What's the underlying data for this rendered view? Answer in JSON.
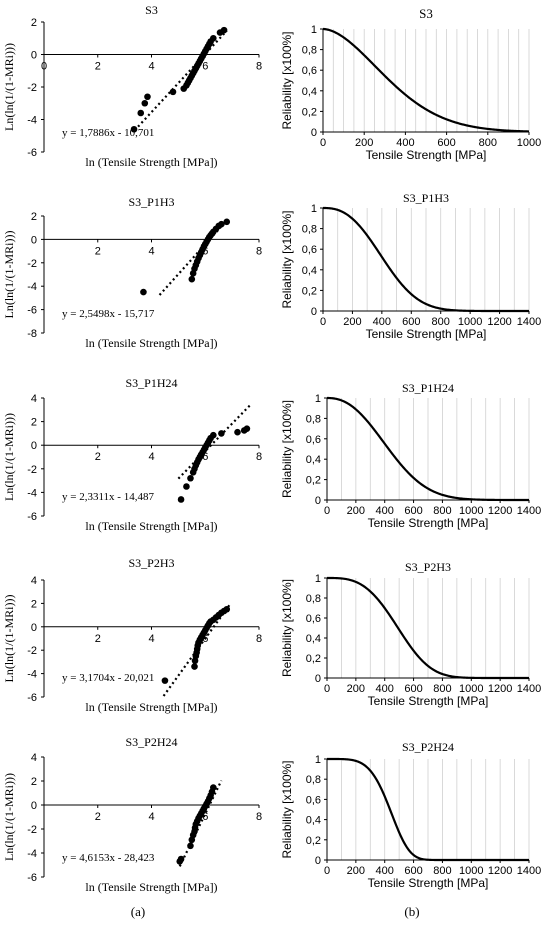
{
  "panel_labels": {
    "a": "(a)",
    "b": "(b)"
  },
  "chart_data": [
    {
      "type": "scatter",
      "title": "S3",
      "xlabel": "ln (Tensile Strength [MPa])",
      "ylabel": "Ln(ln(1/(1-MRi)))",
      "xlim": [
        0,
        8
      ],
      "ylim": [
        -6,
        2
      ],
      "xticks": [
        0,
        2,
        4,
        6,
        8
      ],
      "yticks": [
        -6,
        -4,
        -2,
        0,
        2
      ],
      "equation": "y = 1,7886x - 10,701",
      "trend": {
        "slope": 1.7886,
        "intercept": -10.701,
        "x": [
          3.5,
          6.8
        ]
      },
      "points": {
        "x": [
          3.35,
          3.6,
          3.75,
          3.85,
          4.8,
          5.2,
          5.3,
          5.35,
          5.4,
          5.45,
          5.5,
          5.55,
          5.6,
          5.65,
          5.7,
          5.75,
          5.8,
          5.85,
          5.9,
          5.95,
          6.0,
          6.05,
          6.1,
          6.15,
          6.2,
          6.3,
          6.55,
          6.7
        ],
        "y": [
          -4.6,
          -3.6,
          -3.0,
          -2.6,
          -2.3,
          -2.1,
          -1.9,
          -1.75,
          -1.6,
          -1.45,
          -1.3,
          -1.15,
          -1.0,
          -0.85,
          -0.7,
          -0.55,
          -0.4,
          -0.25,
          -0.1,
          0.05,
          0.2,
          0.35,
          0.5,
          0.65,
          0.8,
          1.0,
          1.35,
          1.5
        ]
      }
    },
    {
      "type": "line",
      "title": "S3",
      "xlabel": "Tensile Strength [MPa]",
      "ylabel": "Reliability [x100%]",
      "xlim": [
        0,
        1000
      ],
      "ylim": [
        0,
        1
      ],
      "xticks": [
        0,
        200,
        400,
        600,
        800,
        1000
      ],
      "yticks": [
        0,
        0.2,
        0.4,
        0.6,
        0.8,
        1
      ],
      "ytick_labels": [
        "0",
        "0,2",
        "0,4",
        "0,6",
        "0,8",
        "1"
      ],
      "grid": true,
      "series": [
        {
          "weibull": {
            "m": 1.7886,
            "b": -10.701
          }
        }
      ]
    },
    {
      "type": "scatter",
      "title": "S3_P1H3",
      "xlabel": "ln (Tensile Strength [MPa])",
      "ylabel": "Ln(ln(1/(1-MRi)))",
      "xlim": [
        0,
        8
      ],
      "ylim": [
        -8,
        2
      ],
      "xticks": [
        2,
        4,
        6,
        8
      ],
      "yticks": [
        -8,
        -6,
        -4,
        -2,
        0,
        2
      ],
      "equation": "y = 2,5498x - 15,717",
      "trend": {
        "slope": 2.5498,
        "intercept": -15.717,
        "x": [
          4.3,
          6.9
        ]
      },
      "points": {
        "x": [
          3.7,
          5.5,
          5.55,
          5.6,
          5.65,
          5.7,
          5.75,
          5.8,
          5.85,
          5.9,
          5.95,
          6.0,
          6.05,
          6.1,
          6.15,
          6.2,
          6.25,
          6.3,
          6.4,
          6.5,
          6.6,
          6.8
        ],
        "y": [
          -4.5,
          -3.4,
          -2.9,
          -2.5,
          -2.2,
          -1.9,
          -1.6,
          -1.35,
          -1.1,
          -0.85,
          -0.6,
          -0.4,
          -0.2,
          0.0,
          0.2,
          0.35,
          0.5,
          0.65,
          0.9,
          1.15,
          1.3,
          1.5
        ]
      }
    },
    {
      "type": "line",
      "title": "S3_P1H3",
      "xlabel": "Tensile Strength [MPa]",
      "ylabel": "Reliability [x100%]",
      "xlim": [
        0,
        1400
      ],
      "ylim": [
        0,
        1
      ],
      "xticks": [
        0,
        200,
        400,
        600,
        800,
        1000,
        1200,
        1400
      ],
      "yticks": [
        0,
        0.2,
        0.4,
        0.6,
        0.8,
        1
      ],
      "ytick_labels": [
        "0",
        "0,2",
        "0,4",
        "0,6",
        "0,8",
        "1"
      ],
      "grid": true,
      "series": [
        {
          "weibull": {
            "m": 2.5498,
            "b": -15.717
          }
        }
      ]
    },
    {
      "type": "scatter",
      "title": "S3_P1H24",
      "xlabel": "ln (Tensile Strength [MPa])",
      "ylabel": "Ln(ln(1/(1-MRi)))",
      "xlim": [
        0,
        8
      ],
      "ylim": [
        -6,
        4
      ],
      "xticks": [
        2,
        4,
        6,
        8
      ],
      "yticks": [
        -6,
        -4,
        -2,
        0,
        2,
        4
      ],
      "equation": "y = 2,3311x - 14,487",
      "trend": {
        "slope": 2.3311,
        "intercept": -14.487,
        "x": [
          5.0,
          7.7
        ]
      },
      "points": {
        "x": [
          5.1,
          5.3,
          5.45,
          5.55,
          5.6,
          5.65,
          5.7,
          5.75,
          5.8,
          5.85,
          5.9,
          5.95,
          6.0,
          6.05,
          6.1,
          6.15,
          6.2,
          6.3,
          6.6,
          7.2,
          7.45,
          7.55
        ],
        "y": [
          -4.6,
          -3.5,
          -2.8,
          -2.3,
          -2.0,
          -1.7,
          -1.45,
          -1.2,
          -1.0,
          -0.8,
          -0.6,
          -0.4,
          -0.2,
          0.0,
          0.2,
          0.4,
          0.6,
          0.85,
          1.0,
          1.1,
          1.25,
          1.4
        ]
      }
    },
    {
      "type": "line",
      "title": "S3_P1H24",
      "xlabel": "Tensile Strength [MPa]",
      "ylabel": "Reliability [x100%]",
      "xlim": [
        0,
        1400
      ],
      "ylim": [
        0,
        1
      ],
      "xticks": [
        0,
        200,
        400,
        600,
        800,
        1000,
        1200,
        1400
      ],
      "yticks": [
        0,
        0.2,
        0.4,
        0.6,
        0.8,
        1
      ],
      "ytick_labels": [
        "0",
        "0,2",
        "0,4",
        "0,6",
        "0,8",
        "1"
      ],
      "grid": true,
      "series": [
        {
          "weibull": {
            "m": 2.3311,
            "b": -14.487
          }
        }
      ]
    },
    {
      "type": "scatter",
      "title": "S3_P2H3",
      "xlabel": "ln (Tensile Strength [MPa])",
      "ylabel": "Ln(ln(1/(1-MRi)))",
      "xlim": [
        0,
        8
      ],
      "ylim": [
        -6,
        4
      ],
      "xticks": [
        2,
        4,
        6,
        8
      ],
      "yticks": [
        -6,
        -4,
        -2,
        0,
        2,
        4
      ],
      "equation": "y = 3,1704x - 20,021",
      "trend": {
        "slope": 3.1704,
        "intercept": -20.021,
        "x": [
          4.45,
          6.9
        ]
      },
      "points": {
        "x": [
          4.5,
          5.6,
          5.62,
          5.65,
          5.68,
          5.7,
          5.72,
          5.75,
          5.8,
          5.85,
          5.9,
          5.95,
          6.0,
          6.05,
          6.1,
          6.15,
          6.2,
          6.3,
          6.4,
          6.5,
          6.6,
          6.7,
          6.8
        ],
        "y": [
          -4.6,
          -3.4,
          -2.9,
          -2.5,
          -2.2,
          -1.9,
          -1.6,
          -1.35,
          -1.1,
          -0.9,
          -0.7,
          -0.5,
          -0.3,
          -0.1,
          0.1,
          0.3,
          0.45,
          0.6,
          0.8,
          1.0,
          1.2,
          1.35,
          1.5
        ]
      }
    },
    {
      "type": "line",
      "title": "S3_P2H3",
      "xlabel": "Tensile Strength [MPa]",
      "ylabel": "Reliability [x100%]",
      "xlim": [
        0,
        1400
      ],
      "ylim": [
        0,
        1
      ],
      "xticks": [
        0,
        200,
        400,
        600,
        800,
        1000,
        1200,
        1400
      ],
      "yticks": [
        0,
        0.2,
        0.4,
        0.6,
        0.8,
        1
      ],
      "ytick_labels": [
        "0",
        "0,2",
        "0,4",
        "0,6",
        "0,8",
        "1"
      ],
      "grid": true,
      "series": [
        {
          "weibull": {
            "m": 3.1704,
            "b": -20.021
          }
        }
      ]
    },
    {
      "type": "scatter",
      "title": "S3_P2H24",
      "xlabel": "ln (Tensile Strength [MPa])",
      "ylabel": "Ln(ln(1/(1-MRi)))",
      "xlim": [
        0,
        8
      ],
      "ylim": [
        -6,
        4
      ],
      "xticks": [
        2,
        4,
        6,
        8
      ],
      "yticks": [
        -6,
        -4,
        -2,
        0,
        2,
        4
      ],
      "equation": "y = 4,6153x - 28,423",
      "trend": {
        "slope": 4.6153,
        "intercept": -28.423,
        "x": [
          5.05,
          6.6
        ]
      },
      "points": {
        "x": [
          5.05,
          5.1,
          5.45,
          5.5,
          5.55,
          5.6,
          5.62,
          5.65,
          5.7,
          5.75,
          5.8,
          5.85,
          5.9,
          5.95,
          6.0,
          6.05,
          6.1,
          6.15,
          6.2,
          6.25,
          6.3
        ],
        "y": [
          -4.7,
          -4.5,
          -3.4,
          -2.9,
          -2.5,
          -2.2,
          -1.9,
          -1.6,
          -1.35,
          -1.1,
          -0.9,
          -0.7,
          -0.5,
          -0.3,
          -0.1,
          0.1,
          0.3,
          0.55,
          0.8,
          1.1,
          1.45
        ]
      }
    },
    {
      "type": "line",
      "title": "S3_P2H24",
      "xlabel": "Tensile Strength [MPa]",
      "ylabel": "Reliability [x100%]",
      "xlim": [
        0,
        1400
      ],
      "ylim": [
        0,
        1
      ],
      "xticks": [
        0,
        200,
        400,
        600,
        800,
        1000,
        1200,
        1400
      ],
      "yticks": [
        0,
        0.2,
        0.4,
        0.6,
        0.8,
        1
      ],
      "ytick_labels": [
        "0",
        "0,2",
        "0,4",
        "0,6",
        "0,8",
        "1"
      ],
      "grid": true,
      "series": [
        {
          "weibull": {
            "m": 4.6153,
            "b": -28.423
          }
        }
      ]
    }
  ]
}
